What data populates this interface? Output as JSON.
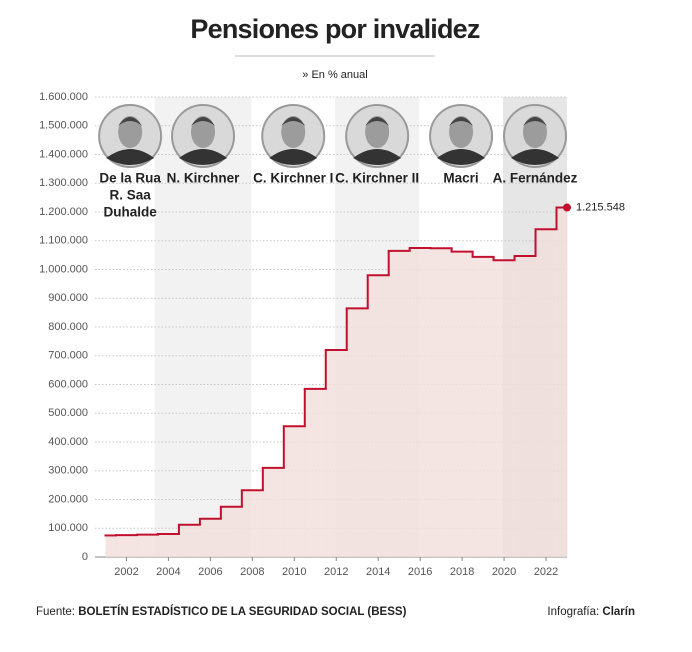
{
  "chart_data": {
    "type": "step",
    "title": "Pensiones por invalidez",
    "subtitle": "» En % anual",
    "x": [
      2001,
      2002,
      2003,
      2004,
      2005,
      2006,
      2007,
      2008,
      2009,
      2010,
      2011,
      2012,
      2013,
      2014,
      2015,
      2016,
      2017,
      2018,
      2019,
      2020,
      2021,
      2022,
      2023
    ],
    "series": [
      {
        "color": "#c0102e",
        "fill": "#f2dedb",
        "values": [
          75000,
          76000,
          78000,
          80000,
          112000,
          133000,
          175000,
          232000,
          310000,
          455000,
          585000,
          720000,
          865000,
          980000,
          1065000,
          1075000,
          1074000,
          1062000,
          1044000,
          1032000,
          1047000,
          1140000,
          1215548
        ],
        "value_labels": [
          null,
          null,
          null,
          null,
          null,
          null,
          null,
          null,
          null,
          null,
          null,
          null,
          null,
          null,
          null,
          null,
          null,
          null,
          null,
          null,
          null,
          null,
          "1.215.548"
        ]
      }
    ],
    "xlim": [
      2000.5,
      2023
    ],
    "xticks": [
      2002,
      2004,
      2006,
      2008,
      2010,
      2012,
      2014,
      2016,
      2018,
      2020,
      2022
    ],
    "ylim": [
      0,
      1600000
    ],
    "yticks": [
      0,
      {
        "value": 100000,
        "label": "100.000"
      },
      {
        "value": 200000,
        "label": "200.000"
      },
      {
        "value": 300000,
        "label": "300.000"
      },
      {
        "value": 400000,
        "label": "400.000"
      },
      {
        "value": 500000,
        "label": "500.000"
      },
      {
        "value": 600000,
        "label": "600.000"
      },
      {
        "value": 700000,
        "label": "700.000"
      },
      {
        "value": 800000,
        "label": "800.000"
      },
      {
        "value": 900000,
        "label": "900.000"
      },
      {
        "value": 1000000,
        "label": "1.000.000"
      },
      {
        "value": 1100000,
        "label": "1.100.000"
      },
      {
        "value": 1200000,
        "label": "1.200.000"
      },
      {
        "value": 1300000,
        "label": "1.300.000"
      },
      {
        "value": 1400000,
        "label": "1.400.000"
      },
      {
        "value": 1500000,
        "label": "1.500.000"
      },
      {
        "value": 1600000,
        "label": "1.600.000"
      }
    ],
    "grid": true,
    "periods": [
      {
        "label": [
          "De la Rua",
          "R. Saa",
          "Duhalde"
        ],
        "start": 2001,
        "end": 2003.35,
        "shade": null
      },
      {
        "label": [
          "N. Kirchner"
        ],
        "start": 2003.35,
        "end": 2007.95,
        "shade": "#f2f2f2"
      },
      {
        "label": [
          "C. Kirchner I"
        ],
        "start": 2007.95,
        "end": 2011.95,
        "shade": null
      },
      {
        "label": [
          "C. Kirchner II"
        ],
        "start": 2011.95,
        "end": 2015.95,
        "shade": "#f2f2f2"
      },
      {
        "label": [
          "Macri"
        ],
        "start": 2015.95,
        "end": 2019.95,
        "shade": null
      },
      {
        "label": [
          "A. Fernández"
        ],
        "start": 2019.95,
        "end": 2023,
        "shade": "#e6e6e6"
      }
    ],
    "source_label": "Fuente:",
    "source": "BOLETÍN ESTADÍSTICO DE LA SEGURIDAD SOCIAL (BESS)",
    "credit_label": "Infografía:",
    "credit": "Clarín"
  }
}
